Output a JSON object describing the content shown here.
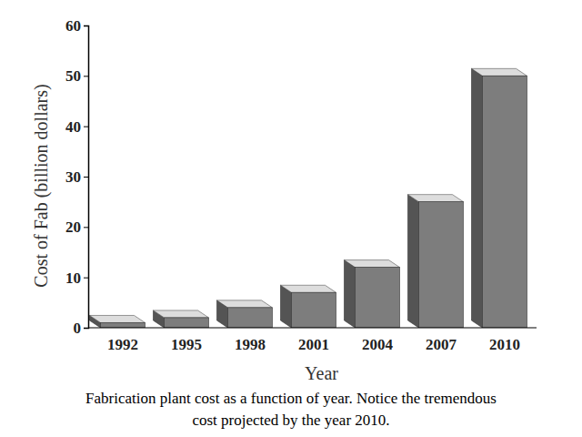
{
  "chart_data": {
    "type": "bar",
    "categories": [
      "1992",
      "1995",
      "1998",
      "2001",
      "2004",
      "2007",
      "2010"
    ],
    "values": [
      1,
      2,
      4,
      7,
      12,
      25,
      50
    ],
    "color": "#7d7d7d",
    "ylim": [
      0,
      60
    ],
    "yticks": [
      0,
      10,
      20,
      30,
      40,
      50,
      60
    ],
    "grid": false,
    "x_label": "Year",
    "y_label": "Cost of Fab (billion dollars)",
    "caption": [
      "Fabrication plant cost as a function of year. Notice the tremendous",
      "cost projected by the year 2010."
    ]
  }
}
